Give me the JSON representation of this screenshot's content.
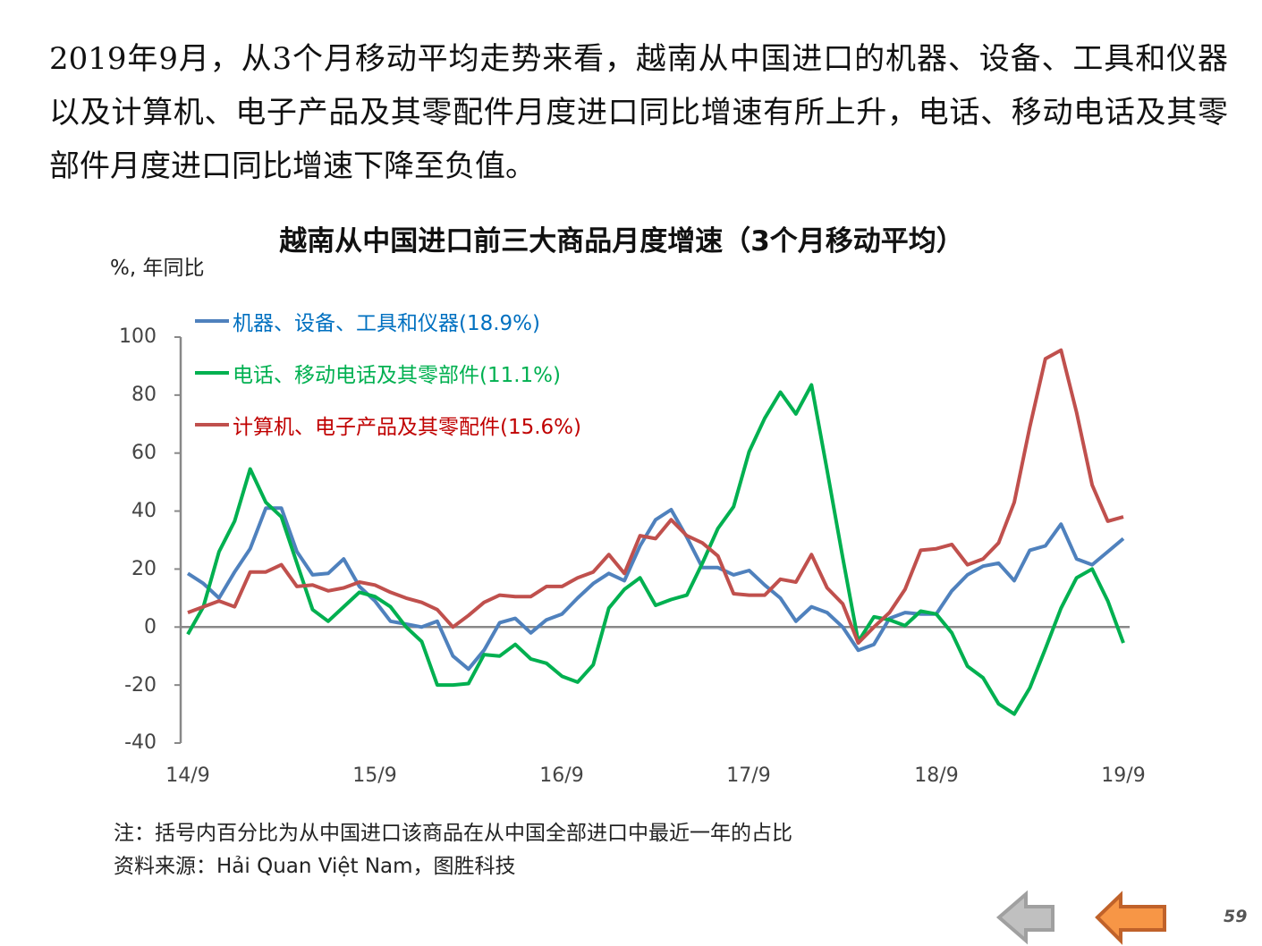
{
  "paragraph": "2019年9月，从3个月移动平均走势来看，越南从中国进口的机器、设备、工具和仪器以及计算机、电子产品及其零配件月度进口同比增速有所上升，电话、移动电话及其零部件月度进口同比增速下降至负值。",
  "notes": {
    "note": "注：括号内百分比为从中国进口该商品在从中国全部进口中最近一年的占比",
    "source": "资料来源：Hải Quan Việt Nam，图胜科技"
  },
  "nav": {
    "back_icon": "arrow-left-gray",
    "prev_icon": "arrow-left-orange",
    "page_number": "59"
  },
  "chart_data": {
    "type": "line",
    "title": "越南从中国进口前三大商品月度增速（3个月移动平均）",
    "ylabel": "%, 年同比",
    "xlabel": "",
    "ylim": [
      -40,
      100
    ],
    "yticks": [
      "100",
      "80",
      "60",
      "40",
      "20",
      "0",
      "-20",
      "-40"
    ],
    "ytick_values": [
      100,
      80,
      60,
      40,
      20,
      0,
      -20,
      -40
    ],
    "xticks": [
      "14/9",
      "15/9",
      "16/9",
      "17/9",
      "18/9",
      "19/9"
    ],
    "xtick_index": [
      0,
      12,
      24,
      36,
      48,
      60
    ],
    "x_start": "2014-09",
    "x_end": "2019-09",
    "legend_position": "top-left",
    "series": [
      {
        "name": "机器、设备、工具和仪器(18.9%)",
        "color": "#4f81bd",
        "label_color": "#0070c0",
        "values": [
          18.5,
          15,
          10,
          19,
          27,
          41,
          41,
          26,
          18,
          18.5,
          23.5,
          14,
          9,
          2,
          1,
          0,
          2,
          -10,
          -14.5,
          -8,
          1.5,
          3,
          -2,
          2.5,
          4.5,
          10,
          15,
          18.5,
          16,
          28,
          37,
          40.5,
          31,
          20.5,
          20.5,
          18,
          19.5,
          14.5,
          10,
          2,
          7,
          5,
          0,
          -8,
          -6,
          3,
          5,
          4.5,
          4.5,
          12.5,
          18,
          21,
          22,
          16,
          26.5,
          28,
          35.5,
          23.5,
          21.5,
          26,
          30.5
        ]
      },
      {
        "name": "电话、移动电话及其零部件(11.1%)",
        "color": "#00b050",
        "label_color": "#00b050",
        "values": [
          -2.5,
          7,
          26,
          36.5,
          54.5,
          43,
          38,
          22,
          6,
          2,
          7,
          12,
          10.5,
          7,
          0,
          -5,
          -20,
          -20,
          -19.5,
          -9.5,
          -10,
          -6,
          -11,
          -12.5,
          -17,
          -19,
          -13,
          6.5,
          13,
          17,
          7.5,
          9.5,
          11,
          22,
          34,
          41.5,
          60.5,
          72,
          81,
          73.5,
          83.5,
          54,
          24,
          -5,
          3.5,
          2.5,
          0.5,
          5.5,
          4.5,
          -2,
          -13.5,
          -17.5,
          -26.5,
          -30,
          -21,
          -7.5,
          6.5,
          17,
          20,
          9,
          -5.5
        ]
      },
      {
        "name": "计算机、电子产品及其零配件(15.6%)",
        "color": "#c0504d",
        "label_color": "#c00000",
        "values": [
          5,
          7,
          9,
          7,
          19,
          19,
          21.5,
          14,
          14.5,
          12.5,
          13.5,
          15.5,
          14.5,
          12,
          10,
          8.5,
          6,
          0,
          4,
          8.5,
          11,
          10.5,
          10.5,
          14,
          14,
          17,
          19,
          25,
          18.5,
          31.5,
          30.5,
          37,
          31.5,
          29,
          24.5,
          11.5,
          11,
          11,
          16.5,
          15.5,
          25,
          13.5,
          8,
          -5.5,
          0,
          5,
          13,
          26.5,
          27,
          28.5,
          21.5,
          23.5,
          29,
          43,
          69,
          92.5,
          95.5,
          74,
          49,
          36.5,
          38
        ]
      }
    ]
  }
}
